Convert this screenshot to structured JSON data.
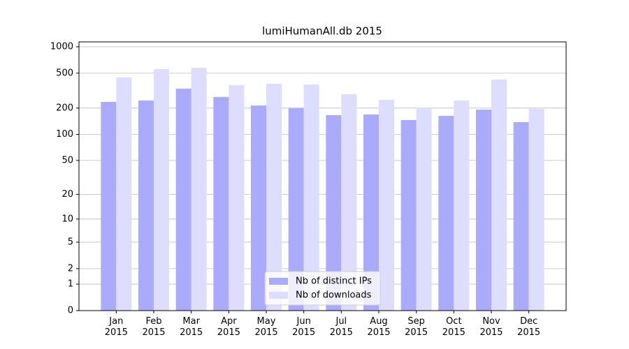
{
  "chart_data": {
    "type": "bar",
    "title": "lumiHumanAll.db 2015",
    "categories": [
      "Jan 2015",
      "Feb 2015",
      "Mar 2015",
      "Apr 2015",
      "May 2015",
      "Jun 2015",
      "Jul 2015",
      "Aug 2015",
      "Sep 2015",
      "Oct 2015",
      "Nov 2015",
      "Dec 2015"
    ],
    "series": [
      {
        "name": "Nb of distinct IPs",
        "color": "#aaaaff",
        "values": [
          235,
          244,
          333,
          268,
          214,
          199,
          166,
          169,
          146,
          163,
          192,
          138
        ]
      },
      {
        "name": "Nb of downloads",
        "color": "#ddddff",
        "values": [
          447,
          556,
          577,
          365,
          379,
          372,
          288,
          248,
          203,
          244,
          423,
          196
        ]
      }
    ],
    "y_scale": "log1p",
    "ylim": [
      0,
      1136
    ],
    "yticks": [
      0,
      1,
      2,
      5,
      10,
      20,
      50,
      100,
      200,
      500,
      1000
    ],
    "grid": true,
    "legend_position": "lower center"
  }
}
